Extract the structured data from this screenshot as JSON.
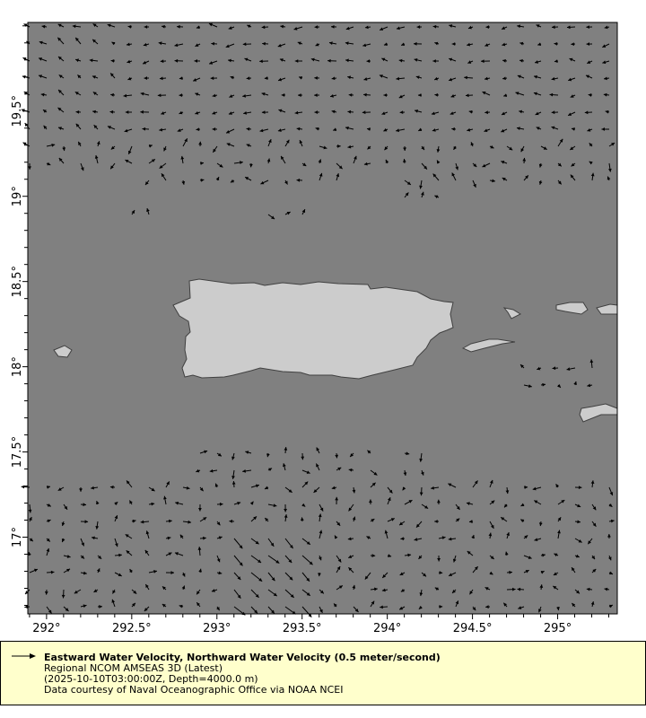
{
  "map": {
    "lon_range": [
      291.89,
      295.35
    ],
    "lat_range": [
      16.55,
      20.02
    ],
    "lon_ticks": [
      {
        "value": 292,
        "label": "292°"
      },
      {
        "value": 292.5,
        "label": "292.5°"
      },
      {
        "value": 293,
        "label": "293°"
      },
      {
        "value": 293.5,
        "label": "293.5°"
      },
      {
        "value": 294,
        "label": "294°"
      },
      {
        "value": 294.5,
        "label": "294.5°"
      },
      {
        "value": 295,
        "label": "295°"
      }
    ],
    "lat_ticks": [
      {
        "value": 17,
        "label": "17°"
      },
      {
        "value": 17.5,
        "label": "17.5°"
      },
      {
        "value": 18,
        "label": "18°"
      },
      {
        "value": 18.5,
        "label": "18.5°"
      },
      {
        "value": 19,
        "label": "19°"
      },
      {
        "value": 19.5,
        "label": "19.5°"
      }
    ],
    "colors": {
      "ocean": "#808080",
      "land": "#cccccc",
      "coast": "#404040",
      "vectors": "#000000",
      "legend_bg": "#ffffcc"
    },
    "type": "vector"
  },
  "legend": {
    "icon": "arrow-right-icon",
    "title": "Eastward Water Velocity, Northward Water Velocity (0.5 meter/second)",
    "dataset": "Regional NCOM AMSEAS 3D (Latest)",
    "time_depth": "(2025-10-10T03:00:00Z, Depth=4000.0 m)",
    "credit": "Data courtesy of Naval Oceanographic Office via NOAA NCEI"
  }
}
